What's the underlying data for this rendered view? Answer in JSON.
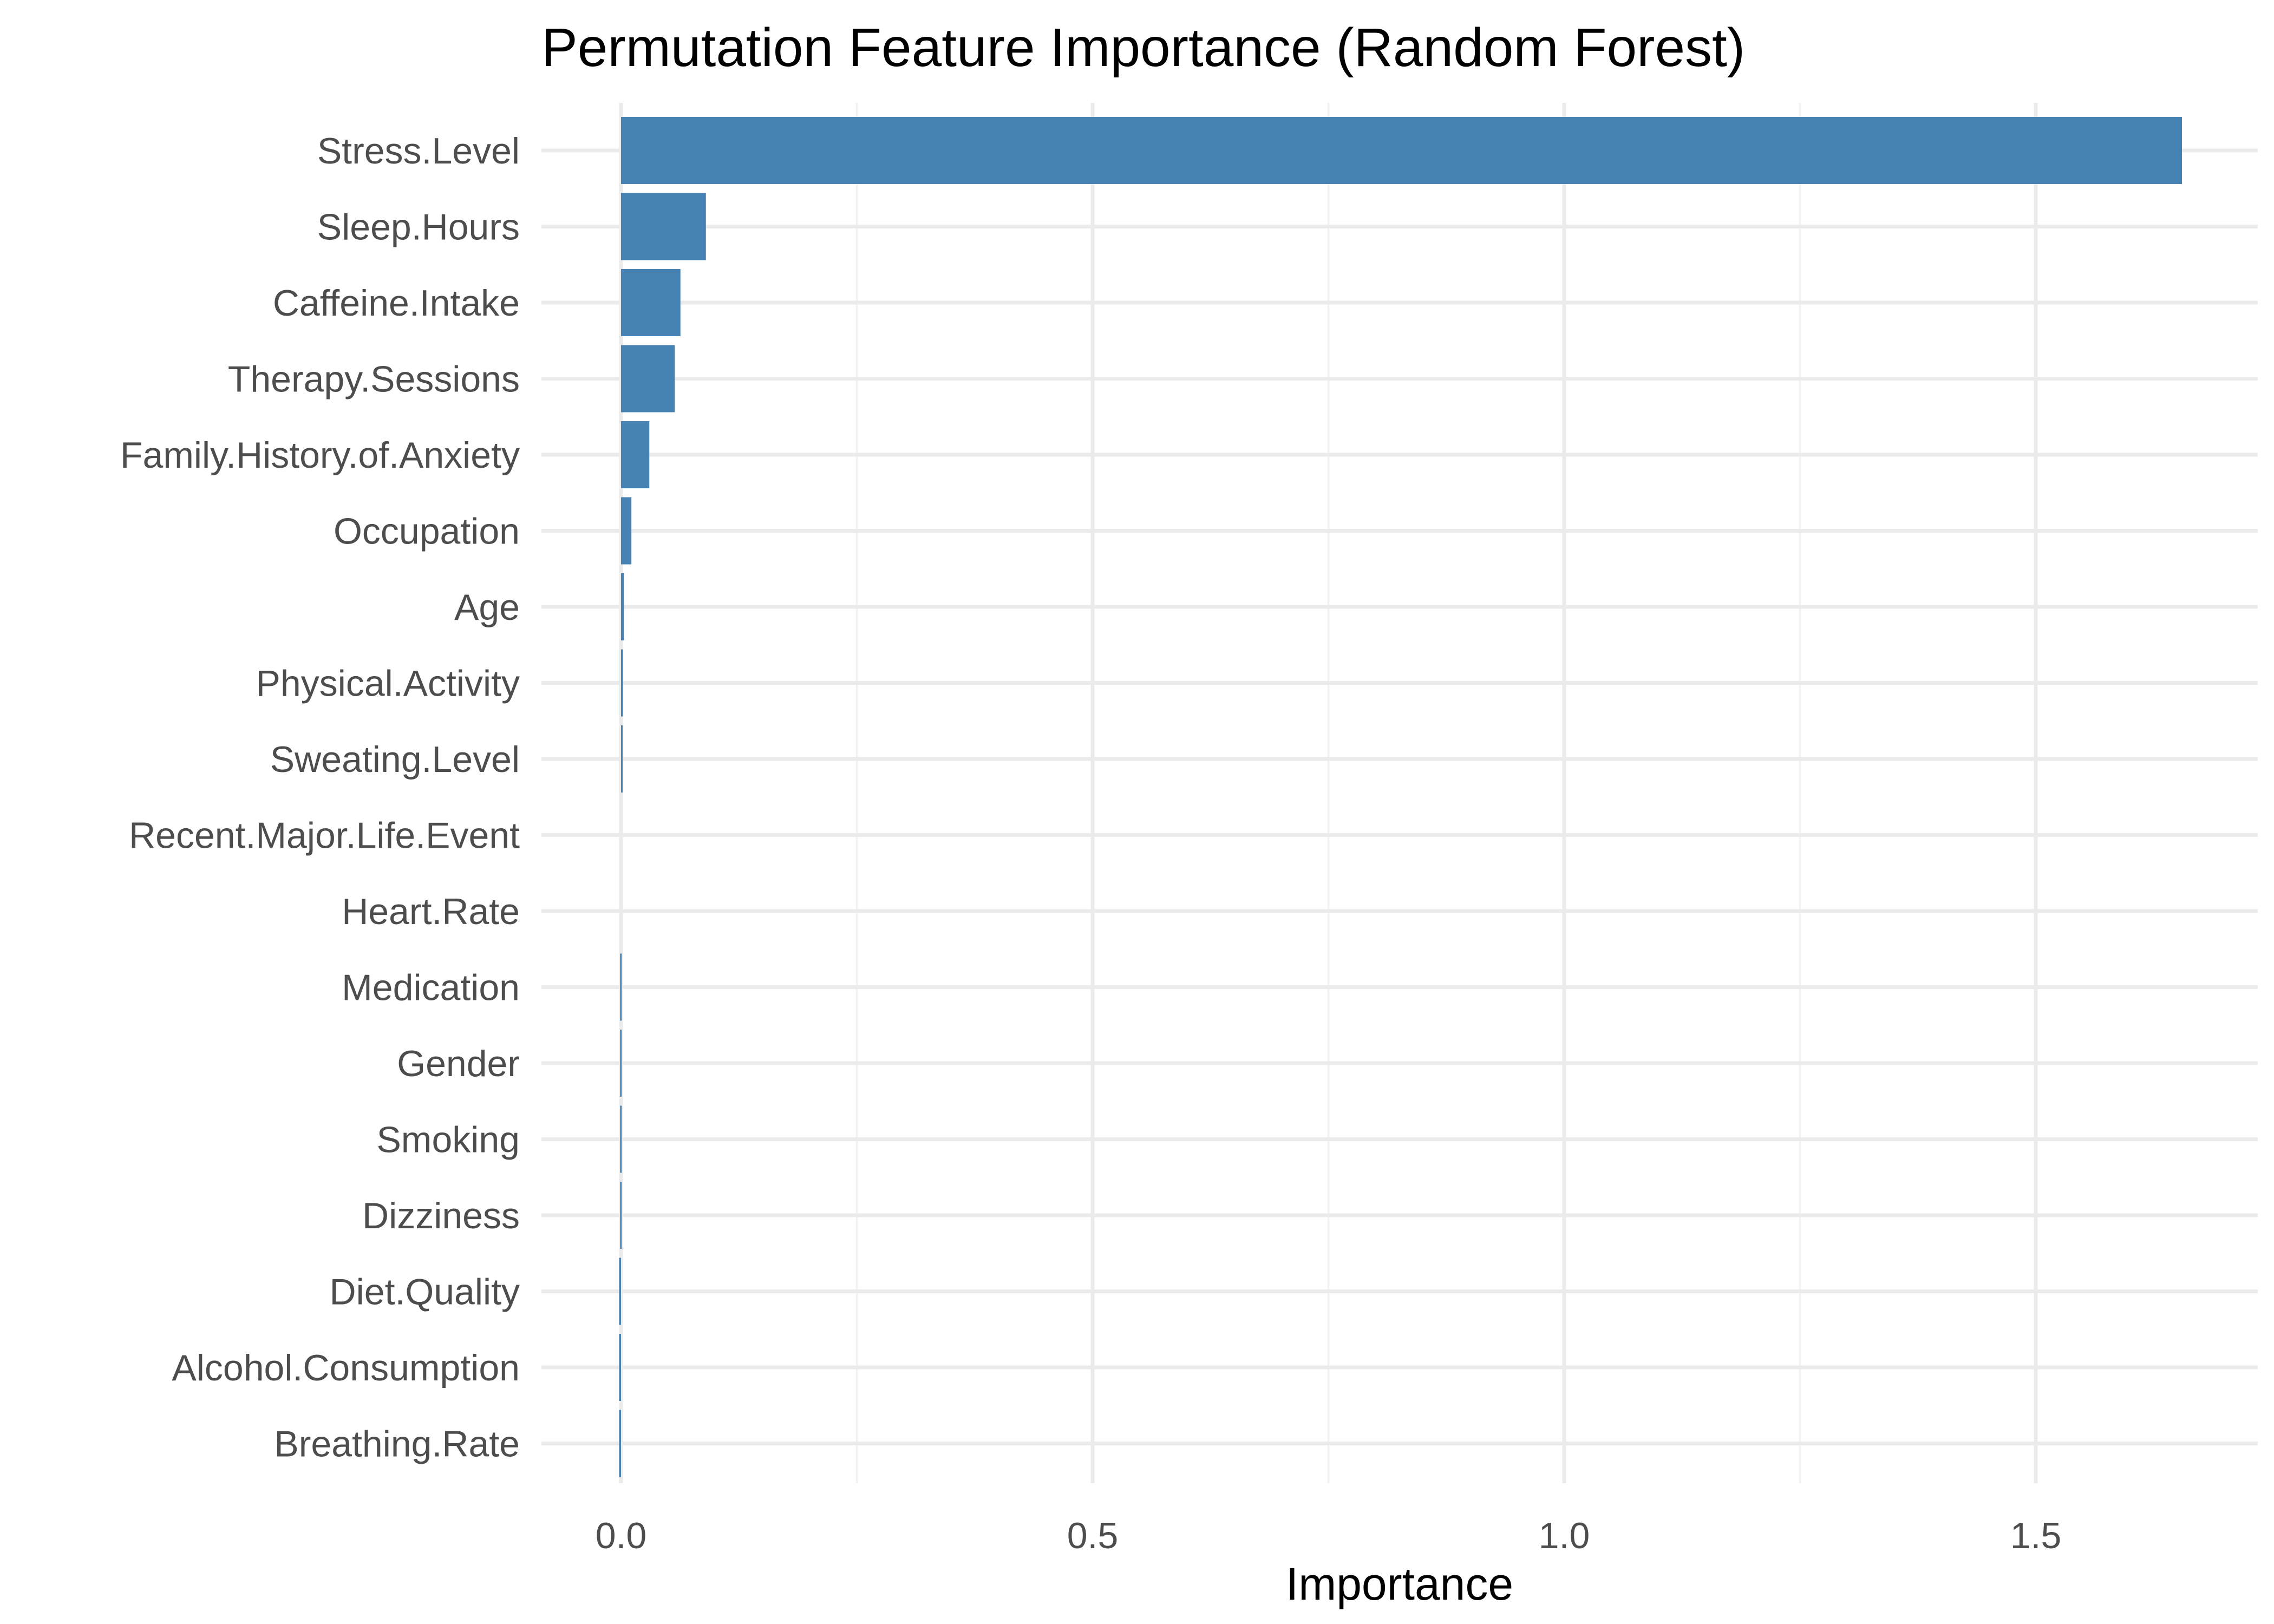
{
  "chart_data": {
    "type": "bar",
    "orientation": "horizontal",
    "title": "Permutation Feature Importance (Random Forest)",
    "xlabel": "Importance",
    "ylabel": "",
    "xlim": [
      -0.09,
      1.73
    ],
    "x_ticks": [
      0.0,
      0.5,
      1.0,
      1.5
    ],
    "x_tick_labels": [
      "0.0",
      "0.5",
      "1.0",
      "1.5"
    ],
    "grid": true,
    "legend": "none",
    "bar_color": "#4682B4",
    "categories": [
      "Stress.Level",
      "Sleep.Hours",
      "Caffeine.Intake",
      "Therapy.Sessions",
      "Family.History.of.Anxiety",
      "Occupation",
      "Age",
      "Physical.Activity",
      "Sweating.Level",
      "Recent.Major.Life.Event",
      "Heart.Rate",
      "Medication",
      "Gender",
      "Smoking",
      "Dizziness",
      "Diet.Quality",
      "Alcohol.Consumption",
      "Breathing.Rate"
    ],
    "values": [
      1.655,
      0.09,
      0.063,
      0.057,
      0.03,
      0.011,
      0.003,
      0.002,
      0.001,
      0.0,
      0.0,
      -0.001,
      -0.001,
      -0.001,
      -0.001,
      -0.002,
      -0.002,
      -0.002
    ]
  }
}
